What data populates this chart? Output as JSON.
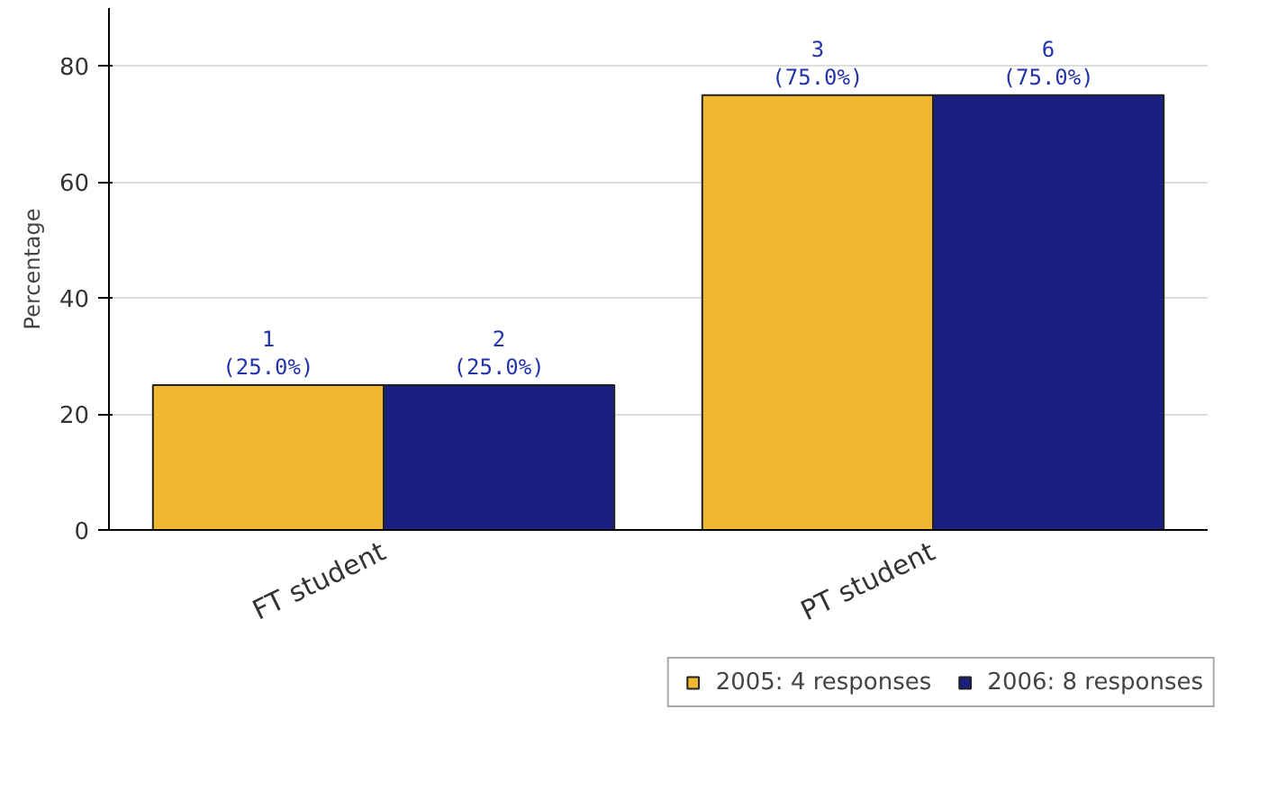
{
  "chart_data": {
    "type": "bar",
    "ylabel": "Percentage",
    "categories": [
      "FT student",
      "PT student"
    ],
    "series": [
      {
        "name": "2005: 4 responses",
        "color": "#f0b830",
        "values": [
          25,
          75
        ],
        "value_labels": [
          "1\n(25.0%)",
          "3\n(75.0%)"
        ]
      },
      {
        "name": "2006: 8 responses",
        "color": "#1a1f80",
        "values": [
          25,
          75
        ],
        "value_labels": [
          "2\n(25.0%)",
          "6\n(75.0%)"
        ]
      }
    ],
    "ylim": [
      0,
      90
    ],
    "yticks": [
      0,
      20,
      40,
      60,
      80
    ],
    "grid": "y",
    "legend": "bottom right"
  }
}
